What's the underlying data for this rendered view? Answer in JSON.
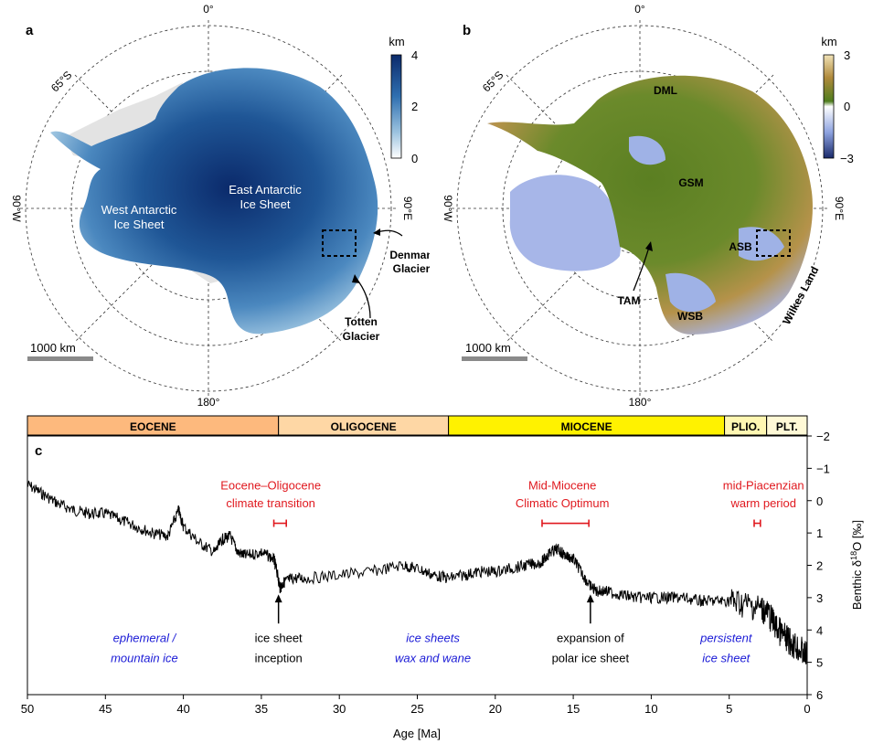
{
  "panel_a": {
    "letter": "a",
    "lon_top": "0°",
    "lon_right": "90°E",
    "lon_bottom": "180°",
    "lon_left": "90°W",
    "lat_label": "65°S",
    "label_west": [
      "West Antarctic",
      "Ice Sheet"
    ],
    "label_east": [
      "East Antarctic",
      "Ice Sheet"
    ],
    "label_denman": [
      "Denman",
      "Glacier"
    ],
    "label_totten": [
      "Totten",
      "Glacier"
    ],
    "scale_label": "1000 km",
    "colorbar": {
      "unit": "km",
      "ticks": [
        "4",
        "2",
        "0"
      ],
      "colors": [
        "#0b2a6b",
        "#2f6fb0",
        "#9cc3df",
        "#ffffff"
      ]
    }
  },
  "panel_b": {
    "letter": "b",
    "lon_top": "0°",
    "lon_right": "90°E",
    "lon_bottom": "180°",
    "lon_left": "90°W",
    "lat_label": "65°S",
    "labels": {
      "dml": "DML",
      "gsm": "GSM",
      "asb": "ASB",
      "tam": "TAM",
      "wsb": "WSB",
      "wilkes": "Wilkes Land"
    },
    "scale_label": "1000 km",
    "colorbar": {
      "unit": "km",
      "ticks": [
        "3",
        "0",
        "−3"
      ],
      "colors": [
        "#f1e3b8",
        "#b08a3c",
        "#4f7d1e",
        "#ffffff",
        "#8ea3e0",
        "#1a2a6b"
      ]
    }
  },
  "panel_c": {
    "letter": "c",
    "epochs": [
      {
        "name": "EOCENE",
        "start": 56,
        "end": 33.9,
        "color": "#fdb97d"
      },
      {
        "name": "OLIGOCENE",
        "start": 33.9,
        "end": 23.0,
        "color": "#fed7a5"
      },
      {
        "name": "MIOCENE",
        "start": 23.0,
        "end": 5.3,
        "color": "#fff200"
      },
      {
        "name": "PLIO.",
        "start": 5.3,
        "end": 2.6,
        "color": "#fff7b2"
      },
      {
        "name": "PLT.",
        "start": 2.6,
        "end": 0,
        "color": "#fff9d6"
      }
    ],
    "events": [
      {
        "lines": [
          "Eocene–Oligocene",
          "climate transition"
        ],
        "range": [
          34.2,
          33.4
        ],
        "label_x": 34.4
      },
      {
        "lines": [
          "Mid-Miocene",
          "Climatic Optimum"
        ],
        "range": [
          17.0,
          14.0
        ],
        "label_x": 15.7
      },
      {
        "lines": [
          "mid-Piacenzian",
          "warm period"
        ],
        "range": [
          3.4,
          3.0
        ],
        "label_x": 2.8
      }
    ],
    "arrows": [
      {
        "x": 33.9,
        "lines": [
          "ice sheet",
          "inception"
        ]
      },
      {
        "x": 13.9,
        "lines": [
          "expansion of",
          "polar ice sheet"
        ]
      }
    ],
    "regimes": [
      {
        "x": 42.5,
        "lines": [
          "ephemeral /",
          "mountain ice"
        ]
      },
      {
        "x": 24.0,
        "lines": [
          "ice sheets",
          "wax and wane"
        ]
      },
      {
        "x": 5.2,
        "lines": [
          "persistent",
          "ice sheet"
        ]
      }
    ],
    "colors": {
      "event": "#e0191f",
      "regime": "#1a1ad6",
      "curve": "#000000"
    }
  },
  "chart_data": {
    "type": "line",
    "xlabel": "Age [Ma]",
    "ylabel": "Benthic δ18O [‰]",
    "xlim": [
      50,
      0
    ],
    "ylim": [
      -2,
      6
    ],
    "y_inverted": true,
    "xticks": [
      50,
      45,
      40,
      35,
      30,
      25,
      20,
      15,
      10,
      5,
      0
    ],
    "yticks": [
      -2,
      -1,
      0,
      1,
      2,
      3,
      4,
      5,
      6
    ],
    "series": [
      {
        "x": [
          50,
          49,
          48,
          47,
          46,
          45,
          44,
          43,
          42,
          41,
          40.3,
          40,
          39,
          38,
          37.5,
          37,
          36.5,
          36,
          35,
          34.2,
          34,
          33.8,
          33.5,
          33,
          32,
          30,
          28,
          26,
          25,
          24,
          23,
          22,
          21,
          20,
          19,
          18,
          17,
          16.5,
          16,
          15.5,
          15,
          14.5,
          14,
          13.5,
          13,
          12,
          11,
          10,
          9,
          8,
          7,
          6,
          5,
          4,
          3,
          2.5,
          2,
          1.5,
          1,
          0.5,
          0
        ],
        "y": [
          -0.5,
          -0.2,
          0.1,
          0.3,
          0.4,
          0.4,
          0.6,
          0.8,
          1.0,
          1.1,
          0.3,
          0.8,
          1.3,
          1.6,
          1.2,
          1.1,
          1.6,
          1.7,
          1.6,
          1.8,
          2.2,
          2.7,
          2.5,
          2.4,
          2.4,
          2.3,
          2.2,
          2.0,
          2.1,
          2.3,
          2.4,
          2.3,
          2.2,
          2.2,
          2.1,
          2.0,
          1.9,
          1.6,
          1.5,
          1.7,
          1.8,
          2.2,
          2.6,
          2.8,
          2.8,
          2.9,
          3.0,
          3.0,
          3.0,
          3.0,
          3.1,
          3.1,
          3.1,
          3.2,
          3.3,
          3.5,
          3.9,
          4.2,
          4.4,
          4.6,
          4.8
        ]
      }
    ]
  }
}
